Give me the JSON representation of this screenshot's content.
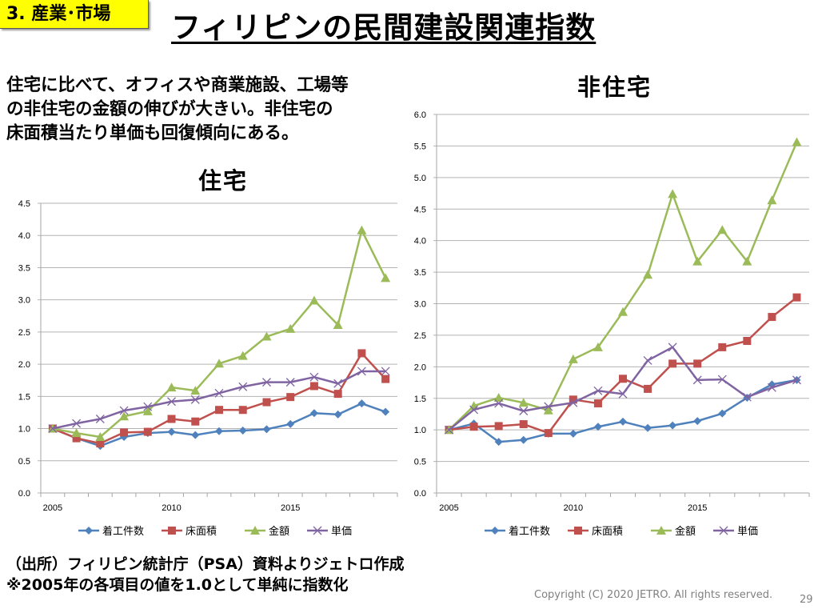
{
  "header": {
    "section_badge": "3. 産業･市場",
    "title": "フィリピンの民間建設関連指数"
  },
  "summary": "住宅に比べて、オフィスや商業施設、工場等\nの非住宅の金額の伸びが大きい。非住宅の\n床面積当たり単価も回復傾向にある。",
  "footer": {
    "source": "（出所）フィリピン統計庁（PSA）資料よりジェトロ作成\n※2005年の各項目の値を1.0として単純に指数化",
    "copyright": "Copyright (C) 2020 JETRO. All rights reserved.",
    "page_number": "29"
  },
  "chart_data": [
    {
      "type": "line",
      "title": "住宅",
      "xlabel": "",
      "ylabel": "",
      "x": [
        2005,
        2006,
        2007,
        2008,
        2009,
        2010,
        2011,
        2012,
        2013,
        2014,
        2015,
        2016,
        2017,
        2018,
        2019
      ],
      "x_tick_labels": [
        "2005",
        "2010",
        "2015"
      ],
      "ylim": [
        0,
        4.5
      ],
      "y_ticks": [
        "0.0",
        "0.5",
        "1.0",
        "1.5",
        "2.0",
        "2.5",
        "3.0",
        "3.5",
        "4.0",
        "4.5"
      ],
      "grid": true,
      "legend_position": "bottom",
      "series": [
        {
          "name": "着工件数",
          "color": "#4f81bd",
          "marker": "diamond",
          "values": [
            1.0,
            0.85,
            0.73,
            0.87,
            0.93,
            0.95,
            0.9,
            0.96,
            0.97,
            0.99,
            1.07,
            1.24,
            1.22,
            1.39,
            1.26
          ]
        },
        {
          "name": "床面積",
          "color": "#c0504d",
          "marker": "square",
          "values": [
            1.0,
            0.85,
            0.77,
            0.94,
            0.95,
            1.15,
            1.11,
            1.29,
            1.29,
            1.41,
            1.49,
            1.66,
            1.54,
            2.17,
            1.77
          ]
        },
        {
          "name": "金額",
          "color": "#9bbb59",
          "marker": "triangle",
          "values": [
            1.0,
            0.93,
            0.87,
            1.19,
            1.27,
            1.64,
            1.59,
            2.01,
            2.13,
            2.43,
            2.55,
            2.99,
            2.61,
            4.08,
            3.34
          ]
        },
        {
          "name": "単価",
          "color": "#8064a2",
          "marker": "x",
          "values": [
            1.0,
            1.08,
            1.15,
            1.28,
            1.34,
            1.42,
            1.45,
            1.55,
            1.65,
            1.72,
            1.72,
            1.8,
            1.7,
            1.89,
            1.89
          ]
        }
      ]
    },
    {
      "type": "line",
      "title": "非住宅",
      "xlabel": "",
      "ylabel": "",
      "x": [
        2005,
        2006,
        2007,
        2008,
        2009,
        2010,
        2011,
        2012,
        2013,
        2014,
        2015,
        2016,
        2017,
        2018,
        2019
      ],
      "x_tick_labels": [
        "2005",
        "2010",
        "2015"
      ],
      "ylim": [
        0,
        6.0
      ],
      "y_ticks": [
        "0.0",
        "0.5",
        "1.0",
        "1.5",
        "2.0",
        "2.5",
        "3.0",
        "3.5",
        "4.0",
        "4.5",
        "5.0",
        "5.5",
        "6.0"
      ],
      "grid": true,
      "legend_position": "bottom",
      "series": [
        {
          "name": "着工件数",
          "color": "#4f81bd",
          "marker": "diamond",
          "values": [
            1.0,
            1.1,
            0.81,
            0.84,
            0.94,
            0.94,
            1.05,
            1.13,
            1.03,
            1.07,
            1.14,
            1.26,
            1.51,
            1.72,
            1.79
          ]
        },
        {
          "name": "床面積",
          "color": "#c0504d",
          "marker": "square",
          "values": [
            1.0,
            1.05,
            1.06,
            1.09,
            0.95,
            1.48,
            1.42,
            1.81,
            1.65,
            2.05,
            2.05,
            2.31,
            2.41,
            2.79,
            3.1
          ]
        },
        {
          "name": "金額",
          "color": "#9bbb59",
          "marker": "triangle",
          "values": [
            1.0,
            1.38,
            1.51,
            1.43,
            1.31,
            2.12,
            2.31,
            2.87,
            3.46,
            4.74,
            3.67,
            4.17,
            3.67,
            4.64,
            5.56
          ]
        },
        {
          "name": "単価",
          "color": "#8064a2",
          "marker": "x",
          "values": [
            1.0,
            1.32,
            1.42,
            1.3,
            1.37,
            1.43,
            1.62,
            1.57,
            2.1,
            2.31,
            1.79,
            1.8,
            1.52,
            1.67,
            1.79
          ]
        }
      ]
    }
  ]
}
